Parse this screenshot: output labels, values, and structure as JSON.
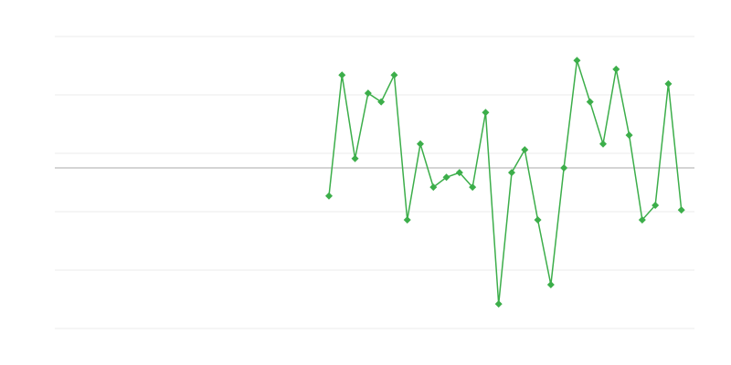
{
  "chart_data": {
    "type": "line",
    "title": "",
    "xlabel": "",
    "ylabel": "",
    "grid": true,
    "xlim": [
      0,
      49
    ],
    "ylim": [
      -2.75,
      2.25
    ],
    "y_gridlines": [
      2.25,
      1.25,
      0.25,
      -0.75,
      -1.75,
      -2.75
    ],
    "baseline": 0,
    "colors": {
      "series": "#3cae4a",
      "grid": "#ebebeb",
      "baseline": "#aaaaaa"
    },
    "marker": "diamond",
    "series": [
      {
        "x": [
          21,
          22,
          23,
          24,
          25,
          26,
          27,
          28,
          29,
          30,
          31,
          32,
          33,
          34,
          35,
          36,
          37,
          38,
          39,
          40,
          41,
          42,
          43,
          44,
          45,
          46,
          47,
          48
        ],
        "values": [
          -0.48,
          1.59,
          0.16,
          1.28,
          1.13,
          1.59,
          -0.89,
          0.41,
          -0.33,
          -0.16,
          -0.08,
          -0.33,
          0.95,
          -2.33,
          -0.08,
          0.31,
          -0.89,
          -2.0,
          0,
          1.84,
          1.13,
          0.41,
          1.69,
          0.56,
          -0.89,
          -0.64,
          1.44,
          -0.72
        ]
      }
    ]
  }
}
